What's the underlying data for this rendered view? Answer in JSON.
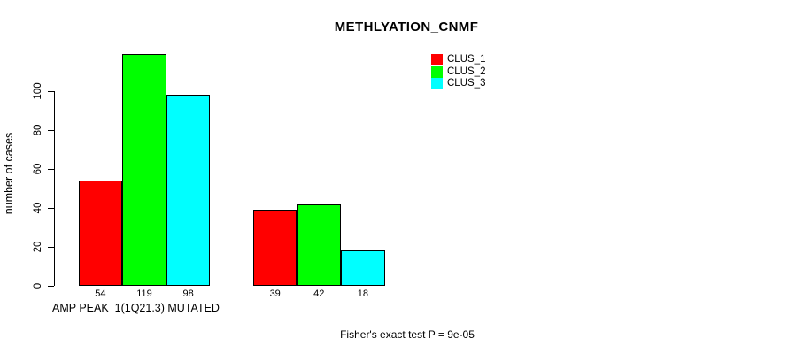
{
  "chart_data": {
    "type": "bar",
    "title": "METHLYATION_CNMF",
    "ylabel": "number of cases",
    "xlabel": "AMP PEAK  1(1Q21.3) MUTATED",
    "footnote": "Fisher's exact test P = 9e-05",
    "yticks": [
      0,
      20,
      40,
      60,
      80,
      100
    ],
    "ylim": [
      0,
      100
    ],
    "grid": false,
    "legend_position": "top-right",
    "num_groups": 2,
    "series": [
      {
        "name": "CLUS_1",
        "color": "#ff0000",
        "values": [
          54,
          39
        ]
      },
      {
        "name": "CLUS_2",
        "color": "#00ff00",
        "values": [
          119,
          42
        ]
      },
      {
        "name": "CLUS_3",
        "color": "#00ffff",
        "values": [
          98,
          18
        ]
      }
    ],
    "bar_value_labels": [
      [
        54,
        119,
        98
      ],
      [
        39,
        42,
        18
      ]
    ]
  }
}
